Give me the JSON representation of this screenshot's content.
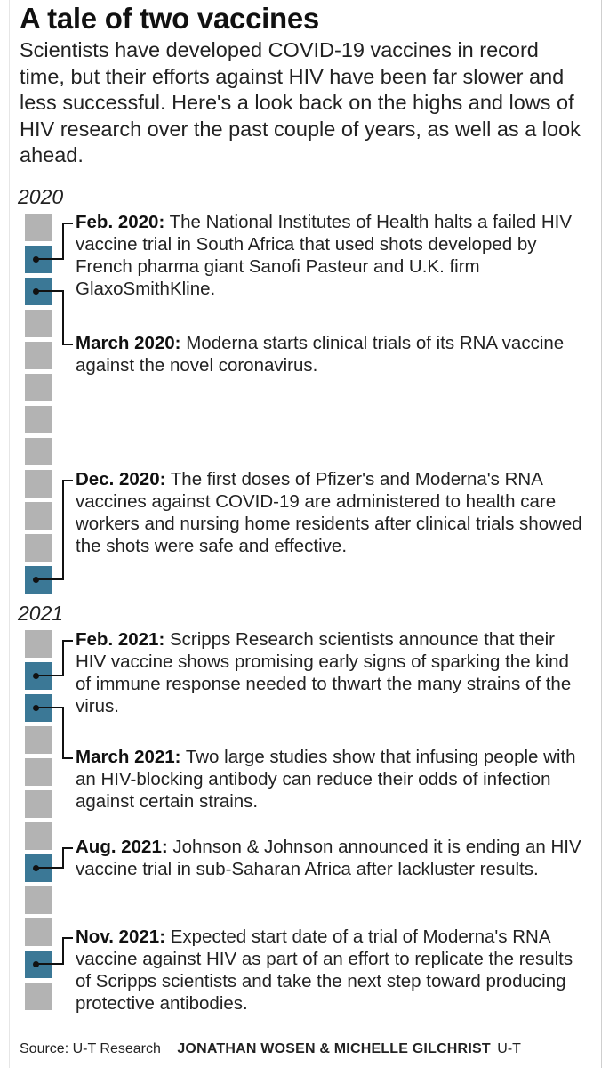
{
  "header": {
    "title": "A tale of two vaccines",
    "intro": "Scientists have developed COVID-19 vaccines in record time, but their efforts against HIV have been far slower and less successful. Here's a look back on the highs and lows of HIV research over the past couple of years, as well as a look ahead."
  },
  "years": [
    "2020",
    "2021"
  ],
  "entries": [
    {
      "date": "Feb. 2020:",
      "text": "The National Institutes of Health halts a failed HIV vaccine trial in South Africa that used shots developed by French pharma giant Sanofi Pasteur and U.K. firm GlaxoSmithKline."
    },
    {
      "date": "March 2020:",
      "text": "Moderna starts clinical trials of its RNA vaccine against the novel coronavirus."
    },
    {
      "date": "Dec. 2020:",
      "text": "The first doses of Pfizer's and Moderna's RNA vaccines against COVID-19 are administered to health care workers and nursing home residents after clinical trials showed the shots were safe and effective."
    },
    {
      "date": "Feb. 2021:",
      "text": "Scripps Research scientists announce that their HIV vaccine shows promising early signs of sparking the kind of immune response needed to thwart the many strains of the virus."
    },
    {
      "date": "March 2021:",
      "text": "Two large studies show that infusing people with an HIV-blocking antibody can reduce their odds of infection against certain strains."
    },
    {
      "date": "Aug. 2021:",
      "text": "Johnson & Johnson announced it is ending an HIV vaccine trial in sub-Saharan Africa after lackluster results."
    },
    {
      "date": "Nov. 2021:",
      "text": "Expected start date of a trial of Moderna's RNA vaccine against HIV as part of an effort to replicate the results of Scripps scientists and take the next step toward producing protective antibodies."
    }
  ],
  "footer": {
    "source": "Source: U-T Research",
    "credit": "JONATHAN WOSEN & MICHELLE GILCHRIST",
    "org": "U-T"
  },
  "colors": {
    "month_square": "#b3b3b3",
    "event_square": "#3b7896",
    "connector": "#111111"
  }
}
